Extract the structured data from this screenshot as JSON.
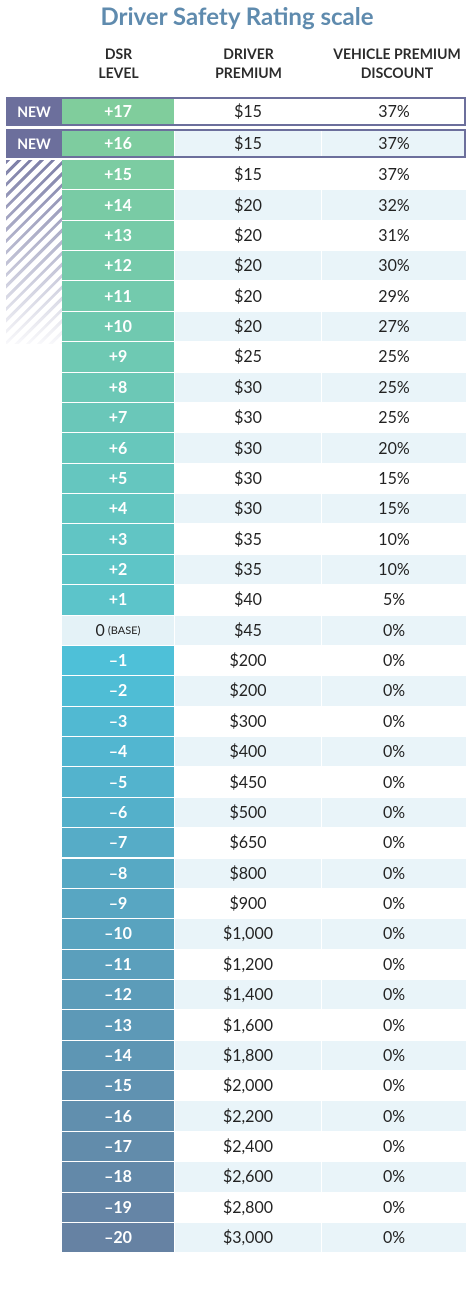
{
  "title": "Driver Safety Rating scale",
  "headers": {
    "level": [
      "DSR",
      "LEVEL"
    ],
    "premium": [
      "DRIVER",
      "PREMIUM"
    ],
    "discount": [
      "VEHICLE PREMIUM",
      "DISCOUNT"
    ]
  },
  "rows": [
    {
      "tag": "NEW",
      "level": "+17",
      "premium": "$15",
      "discount": "37%"
    },
    {
      "tag": "NEW",
      "level": "+16",
      "premium": "$15",
      "discount": "37%"
    },
    {
      "level": "+15",
      "premium": "$15",
      "discount": "37%"
    },
    {
      "level": "+14",
      "premium": "$20",
      "discount": "32%"
    },
    {
      "level": "+13",
      "premium": "$20",
      "discount": "31%"
    },
    {
      "level": "+12",
      "premium": "$20",
      "discount": "30%"
    },
    {
      "level": "+11",
      "premium": "$20",
      "discount": "29%"
    },
    {
      "level": "+10",
      "premium": "$20",
      "discount": "27%"
    },
    {
      "level": "+9",
      "premium": "$25",
      "discount": "25%"
    },
    {
      "level": "+8",
      "premium": "$30",
      "discount": "25%"
    },
    {
      "level": "+7",
      "premium": "$30",
      "discount": "25%"
    },
    {
      "level": "+6",
      "premium": "$30",
      "discount": "20%"
    },
    {
      "level": "+5",
      "premium": "$30",
      "discount": "15%"
    },
    {
      "level": "+4",
      "premium": "$30",
      "discount": "15%"
    },
    {
      "level": "+3",
      "premium": "$35",
      "discount": "10%"
    },
    {
      "level": "+2",
      "premium": "$35",
      "discount": "10%"
    },
    {
      "level": "+1",
      "premium": "$40",
      "discount": "5%"
    },
    {
      "level": "0",
      "note": "(BASE)",
      "premium": "$45",
      "discount": "0%"
    },
    {
      "level": "–1",
      "premium": "$200",
      "discount": "0%"
    },
    {
      "level": "–2",
      "premium": "$200",
      "discount": "0%"
    },
    {
      "level": "–3",
      "premium": "$300",
      "discount": "0%"
    },
    {
      "level": "–4",
      "premium": "$400",
      "discount": "0%"
    },
    {
      "level": "–5",
      "premium": "$450",
      "discount": "0%"
    },
    {
      "level": "–6",
      "premium": "$500",
      "discount": "0%"
    },
    {
      "level": "–7",
      "premium": "$650",
      "discount": "0%"
    },
    {
      "level": "–8",
      "premium": "$800",
      "discount": "0%"
    },
    {
      "level": "–9",
      "premium": "$900",
      "discount": "0%"
    },
    {
      "level": "–10",
      "premium": "$1,000",
      "discount": "0%"
    },
    {
      "level": "–11",
      "premium": "$1,200",
      "discount": "0%"
    },
    {
      "level": "–12",
      "premium": "$1,400",
      "discount": "0%"
    },
    {
      "level": "–13",
      "premium": "$1,600",
      "discount": "0%"
    },
    {
      "level": "–14",
      "premium": "$1,800",
      "discount": "0%"
    },
    {
      "level": "–15",
      "premium": "$2,000",
      "discount": "0%"
    },
    {
      "level": "–16",
      "premium": "$2,200",
      "discount": "0%"
    },
    {
      "level": "–17",
      "premium": "$2,400",
      "discount": "0%"
    },
    {
      "level": "–18",
      "premium": "$2,600",
      "discount": "0%"
    },
    {
      "level": "–19",
      "premium": "$2,800",
      "discount": "0%"
    },
    {
      "level": "–20",
      "premium": "$3,000",
      "discount": "0%"
    }
  ]
}
